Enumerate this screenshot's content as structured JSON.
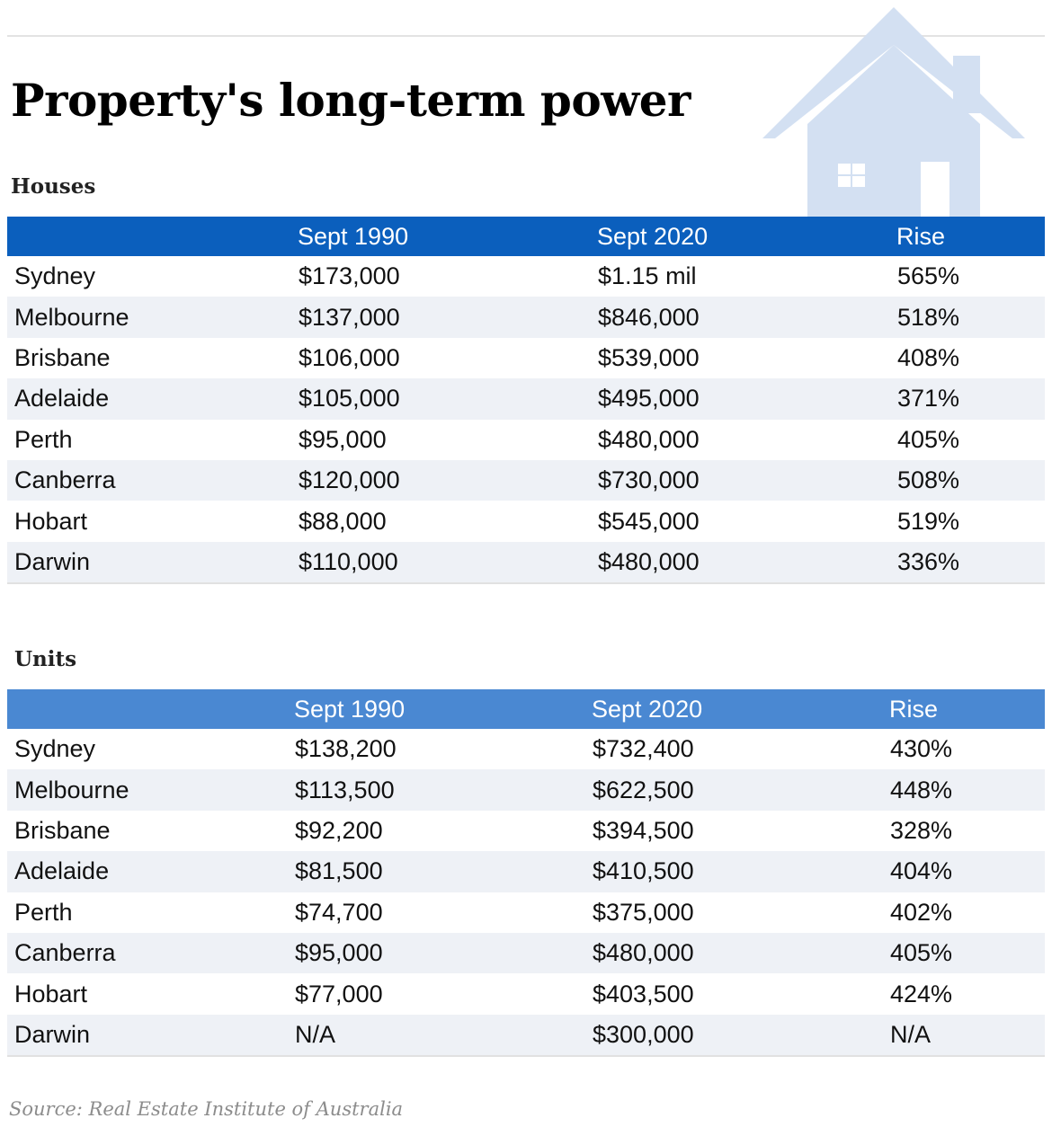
{
  "title": "Property's long-term power",
  "source": "Source: Real Estate Institute of Australia",
  "colors": {
    "houses_header": "#0b5fbd",
    "units_header": "#4a88d2",
    "house_illustration": "#d3e0f2",
    "zebra_row": "#eef1f6"
  },
  "icons": [
    "house-illustration"
  ],
  "chart_data": [
    {
      "type": "table",
      "title": "Houses",
      "columns": [
        "",
        "Sept 1990",
        "Sept 2020",
        "Rise"
      ],
      "rows": [
        [
          "Sydney",
          "$173,000",
          "$1.15 mil",
          "565%"
        ],
        [
          "Melbourne",
          "$137,000",
          "$846,000",
          "518%"
        ],
        [
          "Brisbane",
          "$106,000",
          "$539,000",
          "408%"
        ],
        [
          "Adelaide",
          "$105,000",
          "$495,000",
          "371%"
        ],
        [
          "Perth",
          "$95,000",
          "$480,000",
          "405%"
        ],
        [
          "Canberra",
          "$120,000",
          "$730,000",
          "508%"
        ],
        [
          "Hobart",
          "$88,000",
          "$545,000",
          "519%"
        ],
        [
          "Darwin",
          "$110,000",
          "$480,000",
          "336%"
        ]
      ]
    },
    {
      "type": "table",
      "title": "Units",
      "columns": [
        "",
        "Sept 1990",
        "Sept 2020",
        "Rise"
      ],
      "rows": [
        [
          "Sydney",
          "$138,200",
          "$732,400",
          "430%"
        ],
        [
          "Melbourne",
          "$113,500",
          "$622,500",
          "448%"
        ],
        [
          "Brisbane",
          "$92,200",
          "$394,500",
          "328%"
        ],
        [
          "Adelaide",
          "$81,500",
          "$410,500",
          "404%"
        ],
        [
          "Perth",
          "$74,700",
          "$375,000",
          "402%"
        ],
        [
          "Canberra",
          "$95,000",
          "$480,000",
          "405%"
        ],
        [
          "Hobart",
          "$77,000",
          "$403,500",
          "424%"
        ],
        [
          "Darwin",
          "N/A",
          "$300,000",
          "N/A"
        ]
      ]
    }
  ]
}
